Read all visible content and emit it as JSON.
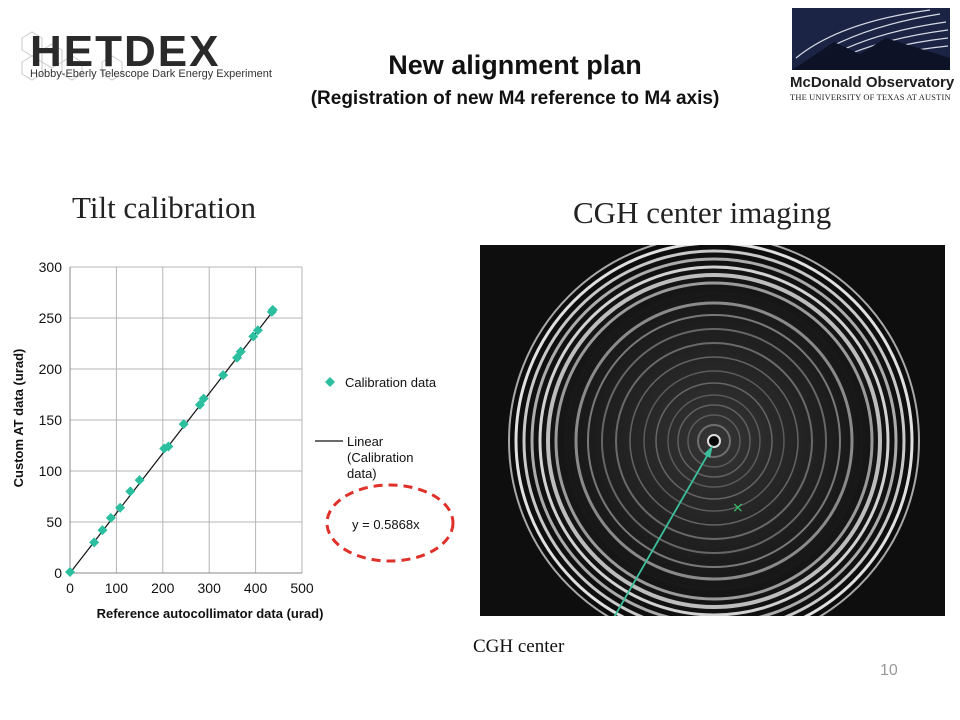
{
  "header": {
    "hetdex_logo_text": "HETDEX",
    "hetdex_subtitle": "Hobby-Eberly Telescope Dark Energy Experiment",
    "title": "New alignment plan",
    "subtitle": "(Registration of new M4 reference to M4 axis)",
    "observatory_name": "McDonald Observatory",
    "observatory_affiliation": "THE UNIVERSITY OF TEXAS AT AUSTIN"
  },
  "tilt_section": {
    "heading": "Tilt calibration"
  },
  "cgh_section": {
    "heading": "CGH center imaging",
    "pointer_label": "CGH center"
  },
  "page_number": "10",
  "colors": {
    "series": "#2bbfa0",
    "fit_line": "#111111",
    "equation_ellipse": "#e0302a",
    "arrow": "#3bbf9c"
  },
  "chart_data": {
    "type": "scatter",
    "title": "",
    "xlabel": "Reference autocollimator data (urad)",
    "ylabel": "Custom AT data (urad)",
    "xlim": [
      0,
      500
    ],
    "ylim": [
      0,
      300
    ],
    "xticks": [
      0,
      100,
      200,
      300,
      400,
      500
    ],
    "yticks": [
      0,
      50,
      100,
      150,
      200,
      250,
      300
    ],
    "grid": true,
    "series": [
      {
        "name": "Calibration data",
        "marker": "diamond",
        "points": [
          [
            0,
            1
          ],
          [
            52,
            30
          ],
          [
            70,
            42
          ],
          [
            88,
            54
          ],
          [
            108,
            64
          ],
          [
            130,
            80
          ],
          [
            150,
            91
          ],
          [
            203,
            122
          ],
          [
            212,
            124
          ],
          [
            245,
            146
          ],
          [
            280,
            165
          ],
          [
            288,
            171
          ],
          [
            330,
            194
          ],
          [
            360,
            211
          ],
          [
            368,
            217
          ],
          [
            395,
            232
          ],
          [
            405,
            238
          ],
          [
            435,
            256
          ],
          [
            437,
            258
          ]
        ]
      },
      {
        "name": "Linear (Calibration data)",
        "type": "line",
        "points": [
          [
            0,
            0
          ],
          [
            440,
            258.2
          ]
        ]
      }
    ],
    "legend": {
      "position": "right",
      "entries": [
        "Calibration data",
        "Linear (Calibration data)"
      ]
    },
    "annotation": "y = 0.5868x"
  }
}
